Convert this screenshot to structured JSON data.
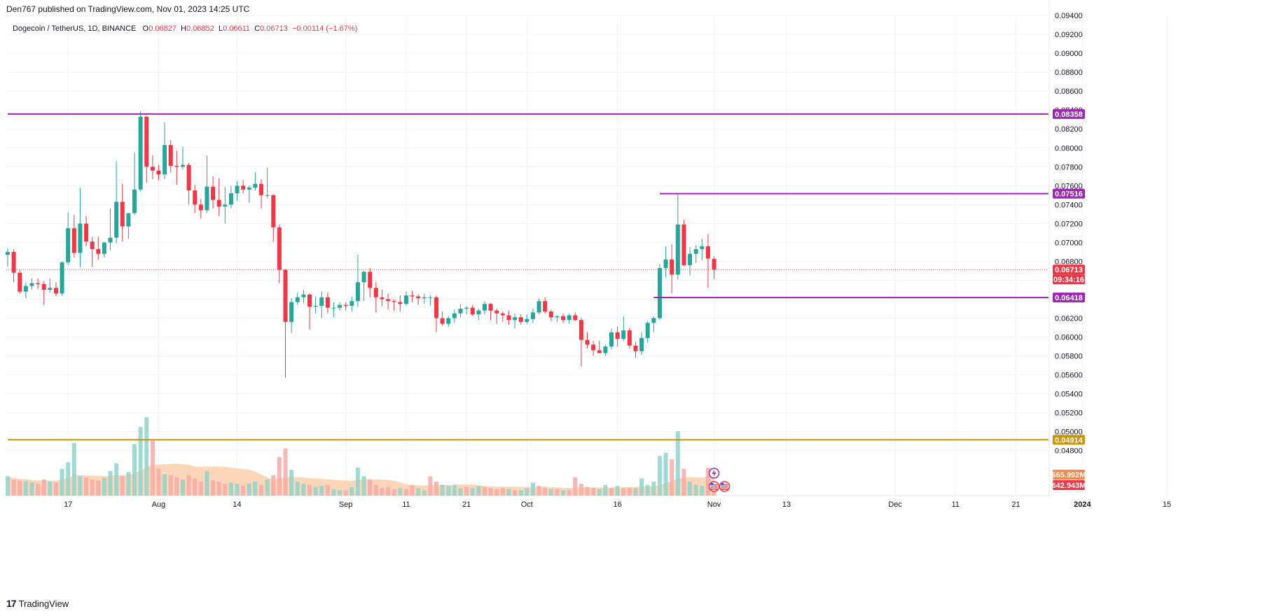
{
  "header": {
    "published_by": "Den767 published on TradingView.com, Nov 01, 2023 14:25 UTC",
    "symbol": "Dogecoin / TetherUS, 1D, BINANCE",
    "open_label": "O",
    "open_value": "0.06827",
    "high_label": "H",
    "high_value": "0.06852",
    "low_label": "L",
    "low_value": "0.06611",
    "close_label": "C",
    "close_value": "0.06713",
    "change": "−0.00114 (−1.67%)"
  },
  "footer": {
    "brand": "TradingView",
    "logo_mark": "17"
  },
  "colors": {
    "up": "#26a69a",
    "down": "#f23645",
    "up_volume": "#8fd4cb",
    "down_volume": "#f7a9a7",
    "volume_ma": "#f9c49a",
    "level_line": "#9c27b0",
    "level_line_gold": "#c9950c",
    "price_line": "#f23645",
    "grid": "#f0f3fa"
  },
  "icons": [
    "lightning-icon",
    "us-flag-icon"
  ],
  "chart_data": {
    "type": "candlestick",
    "title": "",
    "ylim": [
      0.0442,
      0.0936
    ],
    "y_ticks": [
      "0.09400",
      "0.09200",
      "0.09000",
      "0.08800",
      "0.08600",
      "0.08400",
      "0.08200",
      "0.08000",
      "0.07800",
      "0.07600",
      "0.07400",
      "0.07200",
      "0.07000",
      "0.06800",
      "0.06600",
      "0.06400",
      "0.06200",
      "0.06000",
      "0.05800",
      "0.05600",
      "0.05400",
      "0.05200",
      "0.05000",
      "0.04800"
    ],
    "x_ticks": [
      {
        "date": "2023-07-17",
        "label": "17"
      },
      {
        "date": "2023-08-01",
        "label": "Aug"
      },
      {
        "date": "2023-08-14",
        "label": "14"
      },
      {
        "date": "2023-09-01",
        "label": "Sep"
      },
      {
        "date": "2023-09-11",
        "label": "11"
      },
      {
        "date": "2023-09-21",
        "label": "21"
      },
      {
        "date": "2023-10-01",
        "label": "Oct"
      },
      {
        "date": "2023-10-16",
        "label": "16"
      },
      {
        "date": "2023-11-01",
        "label": "Nov"
      },
      {
        "date": "2023-11-13",
        "label": "13"
      },
      {
        "date": "2023-12-01",
        "label": "Dec"
      },
      {
        "date": "2023-12-11",
        "label": "11"
      },
      {
        "date": "2023-12-21",
        "label": "21"
      },
      {
        "date": "2024-01-01",
        "label": "2024"
      },
      {
        "date": "2024-01-15",
        "label": "15"
      }
    ],
    "first_date": "2023-07-07",
    "ohlc": [
      [
        0.0687,
        0.0694,
        0.0674,
        0.069
      ],
      [
        0.069,
        0.0693,
        0.0658,
        0.0668
      ],
      [
        0.0668,
        0.0671,
        0.0646,
        0.0648
      ],
      [
        0.0648,
        0.0658,
        0.0641,
        0.0654
      ],
      [
        0.0654,
        0.0662,
        0.065,
        0.0657
      ],
      [
        0.0657,
        0.0662,
        0.0651,
        0.0656
      ],
      [
        0.0656,
        0.0659,
        0.0634,
        0.065
      ],
      [
        0.065,
        0.0662,
        0.0647,
        0.0652
      ],
      [
        0.0652,
        0.0658,
        0.0643,
        0.0646
      ],
      [
        0.0646,
        0.068,
        0.0644,
        0.0679
      ],
      [
        0.0679,
        0.0732,
        0.0676,
        0.0715
      ],
      [
        0.0715,
        0.0729,
        0.0684,
        0.0689
      ],
      [
        0.0689,
        0.0758,
        0.0674,
        0.072
      ],
      [
        0.072,
        0.0728,
        0.0696,
        0.0701
      ],
      [
        0.0701,
        0.0706,
        0.0674,
        0.0693
      ],
      [
        0.0693,
        0.0706,
        0.0682,
        0.0688
      ],
      [
        0.0688,
        0.07,
        0.0684,
        0.07
      ],
      [
        0.07,
        0.0736,
        0.0692,
        0.0705
      ],
      [
        0.0705,
        0.0786,
        0.0699,
        0.0743
      ],
      [
        0.0743,
        0.0762,
        0.0701,
        0.0717
      ],
      [
        0.0717,
        0.0731,
        0.0704,
        0.0731
      ],
      [
        0.0731,
        0.0795,
        0.0729,
        0.0756
      ],
      [
        0.0756,
        0.0839,
        0.0754,
        0.0833
      ],
      [
        0.0833,
        0.0834,
        0.0763,
        0.078
      ],
      [
        0.078,
        0.0792,
        0.0767,
        0.0776
      ],
      [
        0.0776,
        0.0782,
        0.0766,
        0.0772
      ],
      [
        0.0772,
        0.0827,
        0.0767,
        0.0803
      ],
      [
        0.0803,
        0.0808,
        0.0774,
        0.0781
      ],
      [
        0.0781,
        0.0797,
        0.0761,
        0.078
      ],
      [
        0.078,
        0.0801,
        0.0777,
        0.0782
      ],
      [
        0.0782,
        0.0784,
        0.074,
        0.0755
      ],
      [
        0.0755,
        0.0761,
        0.0731,
        0.074
      ],
      [
        0.074,
        0.0746,
        0.0725,
        0.0734
      ],
      [
        0.0734,
        0.0792,
        0.0731,
        0.0759
      ],
      [
        0.0759,
        0.077,
        0.0736,
        0.0745
      ],
      [
        0.0745,
        0.0768,
        0.0728,
        0.0738
      ],
      [
        0.0738,
        0.0759,
        0.072,
        0.074
      ],
      [
        0.074,
        0.076,
        0.0736,
        0.0752
      ],
      [
        0.0752,
        0.0765,
        0.0744,
        0.076
      ],
      [
        0.076,
        0.0766,
        0.0752,
        0.0756
      ],
      [
        0.0756,
        0.076,
        0.0742,
        0.0758
      ],
      [
        0.0758,
        0.0774,
        0.0755,
        0.0762
      ],
      [
        0.0762,
        0.0767,
        0.0736,
        0.075
      ],
      [
        0.075,
        0.0779,
        0.0747,
        0.075
      ],
      [
        0.075,
        0.0751,
        0.0701,
        0.0716
      ],
      [
        0.0716,
        0.0719,
        0.0657,
        0.0671
      ],
      [
        0.0671,
        0.0672,
        0.0557,
        0.0616
      ],
      [
        0.0616,
        0.0641,
        0.0604,
        0.0637
      ],
      [
        0.0637,
        0.0647,
        0.0634,
        0.0642
      ],
      [
        0.0642,
        0.065,
        0.0636,
        0.0645
      ],
      [
        0.0645,
        0.0646,
        0.0608,
        0.0632
      ],
      [
        0.0632,
        0.0643,
        0.0625,
        0.0633
      ],
      [
        0.0633,
        0.0648,
        0.062,
        0.0642
      ],
      [
        0.0642,
        0.0647,
        0.0625,
        0.0631
      ],
      [
        0.0631,
        0.0637,
        0.0621,
        0.0631
      ],
      [
        0.0631,
        0.0637,
        0.0628,
        0.0634
      ],
      [
        0.0634,
        0.0637,
        0.0628,
        0.0633
      ],
      [
        0.0633,
        0.0643,
        0.0627,
        0.0638
      ],
      [
        0.0638,
        0.0687,
        0.0632,
        0.0658
      ],
      [
        0.0658,
        0.067,
        0.0638,
        0.0669
      ],
      [
        0.0669,
        0.0673,
        0.0642,
        0.0652
      ],
      [
        0.0652,
        0.0658,
        0.0626,
        0.0642
      ],
      [
        0.0642,
        0.065,
        0.0633,
        0.064
      ],
      [
        0.064,
        0.0646,
        0.0629,
        0.0638
      ],
      [
        0.0638,
        0.064,
        0.0628,
        0.0637
      ],
      [
        0.0637,
        0.0644,
        0.0627,
        0.0635
      ],
      [
        0.0635,
        0.0648,
        0.0633,
        0.0644
      ],
      [
        0.0644,
        0.0649,
        0.0637,
        0.0643
      ],
      [
        0.0643,
        0.0645,
        0.0634,
        0.0641
      ],
      [
        0.0641,
        0.0646,
        0.0635,
        0.0642
      ],
      [
        0.0642,
        0.0644,
        0.0633,
        0.0642
      ],
      [
        0.0642,
        0.0644,
        0.0605,
        0.062
      ],
      [
        0.062,
        0.0627,
        0.0612,
        0.0614
      ],
      [
        0.0614,
        0.0622,
        0.0611,
        0.062
      ],
      [
        0.062,
        0.0629,
        0.0615,
        0.0625
      ],
      [
        0.0625,
        0.0635,
        0.0621,
        0.063
      ],
      [
        0.063,
        0.0633,
        0.0624,
        0.0631
      ],
      [
        0.0631,
        0.0634,
        0.0622,
        0.0624
      ],
      [
        0.0624,
        0.063,
        0.0618,
        0.0628
      ],
      [
        0.0628,
        0.0638,
        0.0624,
        0.0635
      ],
      [
        0.0635,
        0.0636,
        0.0618,
        0.0628
      ],
      [
        0.0628,
        0.063,
        0.0614,
        0.0625
      ],
      [
        0.0625,
        0.0627,
        0.0616,
        0.0623
      ],
      [
        0.0623,
        0.0628,
        0.0613,
        0.0618
      ],
      [
        0.0618,
        0.0625,
        0.0609,
        0.0621
      ],
      [
        0.0621,
        0.0624,
        0.0613,
        0.0616
      ],
      [
        0.0616,
        0.0624,
        0.0614,
        0.0619
      ],
      [
        0.0619,
        0.063,
        0.0615,
        0.0626
      ],
      [
        0.0626,
        0.0641,
        0.0624,
        0.0638
      ],
      [
        0.0638,
        0.0642,
        0.0625,
        0.0627
      ],
      [
        0.0627,
        0.0629,
        0.0617,
        0.0621
      ],
      [
        0.0621,
        0.0623,
        0.0616,
        0.0622
      ],
      [
        0.0622,
        0.0625,
        0.0615,
        0.0618
      ],
      [
        0.0618,
        0.0625,
        0.0614,
        0.0623
      ],
      [
        0.0623,
        0.0626,
        0.0617,
        0.0618
      ],
      [
        0.0618,
        0.062,
        0.0569,
        0.0597
      ],
      [
        0.0597,
        0.0605,
        0.0588,
        0.0592
      ],
      [
        0.0592,
        0.0596,
        0.058,
        0.0586
      ],
      [
        0.0586,
        0.0596,
        0.0583,
        0.0583
      ],
      [
        0.0583,
        0.0592,
        0.058,
        0.059
      ],
      [
        0.059,
        0.0609,
        0.0587,
        0.0605
      ],
      [
        0.0605,
        0.0611,
        0.059,
        0.0598
      ],
      [
        0.0598,
        0.0622,
        0.0596,
        0.0607
      ],
      [
        0.0607,
        0.061,
        0.0588,
        0.0591
      ],
      [
        0.0591,
        0.0595,
        0.0578,
        0.0585
      ],
      [
        0.0585,
        0.0605,
        0.0581,
        0.0599
      ],
      [
        0.0599,
        0.0617,
        0.0594,
        0.0615
      ],
      [
        0.0615,
        0.0622,
        0.0605,
        0.062
      ],
      [
        0.062,
        0.0677,
        0.0618,
        0.0673
      ],
      [
        0.0673,
        0.0696,
        0.0663,
        0.0682
      ],
      [
        0.0682,
        0.0698,
        0.0646,
        0.0666
      ],
      [
        0.0666,
        0.0752,
        0.0661,
        0.0719
      ],
      [
        0.0719,
        0.0724,
        0.0675,
        0.0676
      ],
      [
        0.0676,
        0.0695,
        0.0665,
        0.0688
      ],
      [
        0.0688,
        0.0697,
        0.0678,
        0.0693
      ],
      [
        0.0693,
        0.0704,
        0.0681,
        0.0696
      ],
      [
        0.0696,
        0.0709,
        0.0652,
        0.0683
      ],
      [
        0.06827,
        0.06852,
        0.06611,
        0.06713
      ]
    ],
    "volume": [
      {
        "v": 0.36,
        "up": true
      },
      {
        "v": 0.3,
        "up": false
      },
      {
        "v": 0.28,
        "up": false
      },
      {
        "v": 0.27,
        "up": true
      },
      {
        "v": 0.25,
        "up": true
      },
      {
        "v": 0.22,
        "up": false
      },
      {
        "v": 0.3,
        "up": false
      },
      {
        "v": 0.26,
        "up": true
      },
      {
        "v": 0.24,
        "up": false
      },
      {
        "v": 0.5,
        "up": true
      },
      {
        "v": 0.62,
        "up": true
      },
      {
        "v": 0.98,
        "up": true
      },
      {
        "v": 0.36,
        "up": true
      },
      {
        "v": 0.34,
        "up": false
      },
      {
        "v": 0.3,
        "up": false
      },
      {
        "v": 0.28,
        "up": false
      },
      {
        "v": 0.33,
        "up": true
      },
      {
        "v": 0.46,
        "up": true
      },
      {
        "v": 0.6,
        "up": true
      },
      {
        "v": 0.36,
        "up": false
      },
      {
        "v": 0.44,
        "up": true
      },
      {
        "v": 0.96,
        "up": true
      },
      {
        "v": 1.28,
        "up": true
      },
      {
        "v": 1.46,
        "up": true
      },
      {
        "v": 1.02,
        "up": false
      },
      {
        "v": 0.5,
        "up": false
      },
      {
        "v": 0.4,
        "up": true
      },
      {
        "v": 0.38,
        "up": false
      },
      {
        "v": 0.34,
        "up": false
      },
      {
        "v": 0.3,
        "up": true
      },
      {
        "v": 0.38,
        "up": false
      },
      {
        "v": 0.32,
        "up": false
      },
      {
        "v": 0.26,
        "up": false
      },
      {
        "v": 0.46,
        "up": true
      },
      {
        "v": 0.28,
        "up": false
      },
      {
        "v": 0.26,
        "up": false
      },
      {
        "v": 0.22,
        "up": false
      },
      {
        "v": 0.24,
        "up": true
      },
      {
        "v": 0.22,
        "up": true
      },
      {
        "v": 0.18,
        "up": false
      },
      {
        "v": 0.22,
        "up": true
      },
      {
        "v": 0.26,
        "up": true
      },
      {
        "v": 0.2,
        "up": false
      },
      {
        "v": 0.3,
        "up": true
      },
      {
        "v": 0.38,
        "up": false
      },
      {
        "v": 0.72,
        "up": false
      },
      {
        "v": 0.88,
        "up": false
      },
      {
        "v": 0.48,
        "up": true
      },
      {
        "v": 0.26,
        "up": true
      },
      {
        "v": 0.22,
        "up": true
      },
      {
        "v": 0.2,
        "up": false
      },
      {
        "v": 0.16,
        "up": true
      },
      {
        "v": 0.18,
        "up": true
      },
      {
        "v": 0.2,
        "up": false
      },
      {
        "v": 0.12,
        "up": true
      },
      {
        "v": 0.1,
        "up": true
      },
      {
        "v": 0.1,
        "up": false
      },
      {
        "v": 0.16,
        "up": true
      },
      {
        "v": 0.52,
        "up": true
      },
      {
        "v": 0.36,
        "up": true
      },
      {
        "v": 0.3,
        "up": false
      },
      {
        "v": 0.2,
        "up": false
      },
      {
        "v": 0.14,
        "up": false
      },
      {
        "v": 0.16,
        "up": false
      },
      {
        "v": 0.12,
        "up": false
      },
      {
        "v": 0.14,
        "up": true
      },
      {
        "v": 0.12,
        "up": false
      },
      {
        "v": 0.2,
        "up": false
      },
      {
        "v": 0.14,
        "up": true
      },
      {
        "v": 0.1,
        "up": true
      },
      {
        "v": 0.36,
        "up": false
      },
      {
        "v": 0.26,
        "up": false
      },
      {
        "v": 0.2,
        "up": true
      },
      {
        "v": 0.18,
        "up": true
      },
      {
        "v": 0.2,
        "up": true
      },
      {
        "v": 0.14,
        "up": true
      },
      {
        "v": 0.16,
        "up": false
      },
      {
        "v": 0.14,
        "up": true
      },
      {
        "v": 0.18,
        "up": true
      },
      {
        "v": 0.16,
        "up": false
      },
      {
        "v": 0.14,
        "up": false
      },
      {
        "v": 0.12,
        "up": false
      },
      {
        "v": 0.14,
        "up": false
      },
      {
        "v": 0.12,
        "up": true
      },
      {
        "v": 0.1,
        "up": false
      },
      {
        "v": 0.1,
        "up": true
      },
      {
        "v": 0.14,
        "up": true
      },
      {
        "v": 0.24,
        "up": true
      },
      {
        "v": 0.18,
        "up": false
      },
      {
        "v": 0.14,
        "up": false
      },
      {
        "v": 0.12,
        "up": true
      },
      {
        "v": 0.12,
        "up": false
      },
      {
        "v": 0.1,
        "up": true
      },
      {
        "v": 0.1,
        "up": false
      },
      {
        "v": 0.34,
        "up": false
      },
      {
        "v": 0.22,
        "up": false
      },
      {
        "v": 0.16,
        "up": false
      },
      {
        "v": 0.14,
        "up": false
      },
      {
        "v": 0.12,
        "up": true
      },
      {
        "v": 0.2,
        "up": true
      },
      {
        "v": 0.14,
        "up": false
      },
      {
        "v": 0.18,
        "up": true
      },
      {
        "v": 0.14,
        "up": false
      },
      {
        "v": 0.14,
        "up": false
      },
      {
        "v": 0.14,
        "up": true
      },
      {
        "v": 0.32,
        "up": true
      },
      {
        "v": 0.2,
        "up": true
      },
      {
        "v": 0.26,
        "up": true
      },
      {
        "v": 0.74,
        "up": true
      },
      {
        "v": 0.8,
        "up": true
      },
      {
        "v": 0.68,
        "up": false
      },
      {
        "v": 1.2,
        "up": true
      },
      {
        "v": 0.5,
        "up": false
      },
      {
        "v": 0.26,
        "up": true
      },
      {
        "v": 0.2,
        "up": true
      },
      {
        "v": 0.18,
        "up": true
      },
      {
        "v": 0.52,
        "up": false
      },
      {
        "v": 0.22,
        "up": false
      }
    ],
    "volume_max_ref": 1.5,
    "horizontal_levels": [
      {
        "value": 0.08358,
        "label": "0.08358",
        "color": "#9c27b0",
        "from_date": "2023-07-07"
      },
      {
        "value": 0.07516,
        "label": "0.07516",
        "color": "#9c27b0",
        "from_date": "2023-10-23"
      },
      {
        "value": 0.06418,
        "label": "0.06418",
        "color": "#9c27b0",
        "from_date": "2023-10-22"
      },
      {
        "value": 0.04914,
        "label": "0.04914",
        "color": "#c9950c",
        "from_date": "2023-07-07"
      }
    ],
    "last_price": {
      "value": 0.06713,
      "label": "0.06713",
      "countdown": "09:34:16"
    },
    "volume_labels": [
      {
        "text": "665.992M",
        "color": "#f7844b"
      },
      {
        "text": "642.943M",
        "color": "#f23645"
      }
    ]
  }
}
